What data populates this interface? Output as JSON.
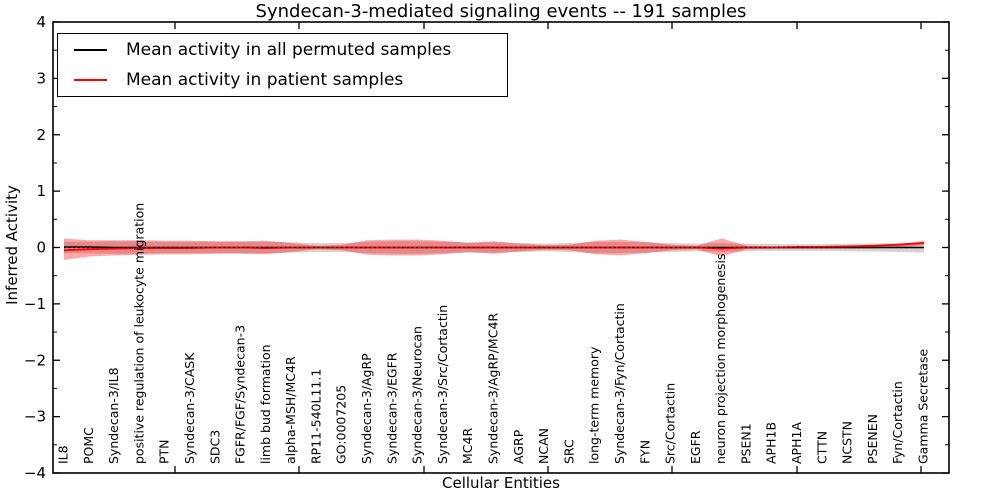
{
  "title": "Syndecan-3-mediated signaling events -- 191 samples",
  "legend": {
    "items": [
      {
        "label": "Mean activity in all permuted samples",
        "color": "#000000"
      },
      {
        "label": "Mean activity in patient samples",
        "color": "#ff0000"
      }
    ]
  },
  "chart_data": {
    "type": "line",
    "title": "Syndecan-3-mediated signaling events -- 191 samples",
    "xlabel": "Cellular Entities",
    "ylabel": "Inferred Activity",
    "ylim": [
      -4,
      4
    ],
    "yticks": [
      -4,
      -3,
      -2,
      -1,
      0,
      1,
      2,
      3,
      4
    ],
    "grid": false,
    "legend_position": "upper left",
    "categories": [
      "IL8",
      "POMC",
      "Syndecan-3/IL8",
      "positive regulation of leukocyte migration",
      "PTN",
      "Syndecan-3/CASK",
      "SDC3",
      "FGFR/FGF/Syndecan-3",
      "limb bud formation",
      "alpha-MSH/MC4R",
      "RP11-540L11.1",
      "GO:0007205",
      "Syndecan-3/AgRP",
      "Syndecan-3/EGFR",
      "Syndecan-3/Neurocan",
      "Syndecan-3/Src/Cortactin",
      "MC4R",
      "Syndecan-3/AgRP/MC4R",
      "AGRP",
      "NCAN",
      "SRC",
      "long-term memory",
      "Syndecan-3/Fyn/Cortactin",
      "FYN",
      "Src/Cortactin",
      "EGFR",
      "neuron projection morphogenesis",
      "PSEN1",
      "APH1B",
      "APH1A",
      "CTTN",
      "NCSTN",
      "PSENEN",
      "Fyn/Cortactin",
      "Gamma Secretase"
    ],
    "series": [
      {
        "name": "Mean activity in all permuted samples",
        "color": "#000000",
        "values": [
          0.01,
          0.01,
          0,
          0,
          0,
          0,
          0,
          0,
          0,
          0,
          0,
          0,
          0,
          0,
          0,
          0,
          0,
          0,
          0,
          0,
          0,
          0,
          0,
          0,
          0,
          0,
          0,
          0,
          0,
          0,
          0,
          0,
          0,
          0,
          0
        ]
      },
      {
        "name": "Mean activity in patient samples",
        "color": "#ff0000",
        "values": [
          -0.05,
          -0.03,
          -0.02,
          -0.01,
          -0.01,
          -0.01,
          0,
          0,
          -0.01,
          0,
          0,
          0,
          0,
          0,
          0,
          0,
          0,
          0,
          0,
          0,
          0,
          0,
          0,
          0,
          0,
          0,
          -0.02,
          0,
          0,
          0.01,
          0.01,
          0.02,
          0.03,
          0.05,
          0.08
        ]
      }
    ],
    "bands": [
      {
        "name": "permuted-samples-range",
        "color": "#808080",
        "opacity": 0.35,
        "upper": [
          0.1,
          0.1,
          0.11,
          0.11,
          0.1,
          0.1,
          0.1,
          0.1,
          0.1,
          0.09,
          0.08,
          0.08,
          0.1,
          0.11,
          0.11,
          0.1,
          0.09,
          0.09,
          0.08,
          0.07,
          0.08,
          0.1,
          0.1,
          0.09,
          0.08,
          0.07,
          0.08,
          0.07,
          0.06,
          0.06,
          0.06,
          0.07,
          0.07,
          0.08,
          0.09
        ],
        "lower": [
          -0.1,
          -0.1,
          -0.11,
          -0.11,
          -0.1,
          -0.1,
          -0.1,
          -0.1,
          -0.1,
          -0.09,
          -0.08,
          -0.08,
          -0.1,
          -0.11,
          -0.11,
          -0.1,
          -0.09,
          -0.09,
          -0.08,
          -0.07,
          -0.08,
          -0.1,
          -0.1,
          -0.09,
          -0.08,
          -0.07,
          -0.08,
          -0.07,
          -0.06,
          -0.06,
          -0.06,
          -0.07,
          -0.07,
          -0.08,
          -0.09
        ]
      },
      {
        "name": "patient-samples-range",
        "color": "#ff0000",
        "opacity": 0.35,
        "upper": [
          0.16,
          0.13,
          0.13,
          0.13,
          0.12,
          0.12,
          0.11,
          0.11,
          0.12,
          0.08,
          0.03,
          0.05,
          0.13,
          0.14,
          0.14,
          0.12,
          0.08,
          0.11,
          0.07,
          0.04,
          0.05,
          0.12,
          0.14,
          0.1,
          0.05,
          0.03,
          0.16,
          0.03,
          0.02,
          0.02,
          0.02,
          0.02,
          0.03,
          0.06,
          0.12
        ],
        "lower": [
          -0.22,
          -0.16,
          -0.14,
          -0.13,
          -0.12,
          -0.12,
          -0.11,
          -0.11,
          -0.12,
          -0.08,
          -0.03,
          -0.05,
          -0.13,
          -0.14,
          -0.14,
          -0.12,
          -0.08,
          -0.11,
          -0.07,
          -0.04,
          -0.05,
          -0.12,
          -0.14,
          -0.1,
          -0.05,
          -0.03,
          -0.16,
          -0.03,
          -0.02,
          -0.02,
          -0.02,
          -0.02,
          -0.02,
          0.0,
          0.04
        ]
      }
    ],
    "zero_line": true
  }
}
